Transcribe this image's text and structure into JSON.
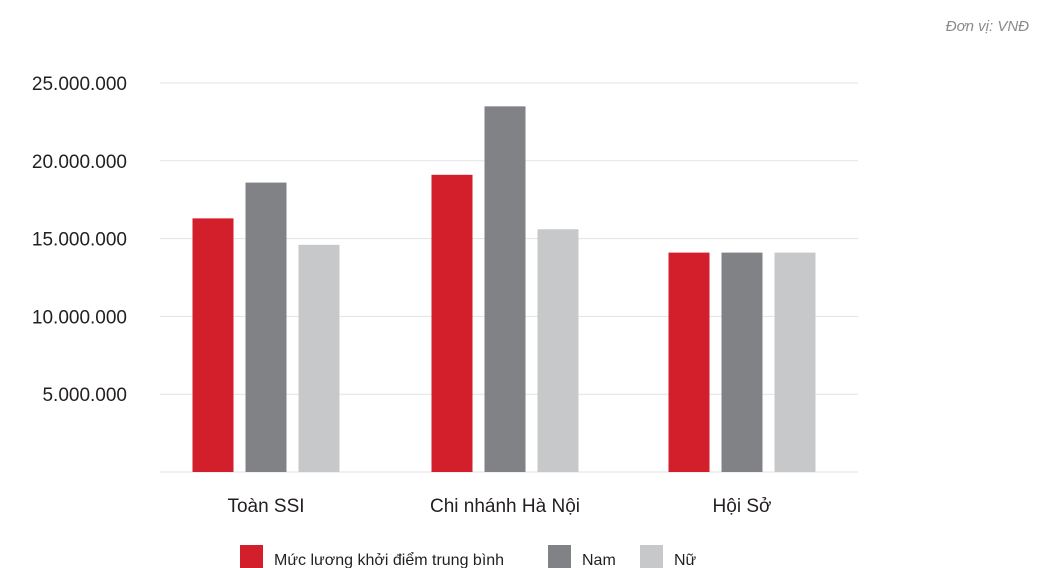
{
  "unit_label": "Đơn vị: VNĐ",
  "chart_data": {
    "type": "bar",
    "categories": [
      "Toàn SSI",
      "Chi nhánh Hà Nội",
      "Hội Sở"
    ],
    "series": [
      {
        "name": "Mức lương khởi điểm trung bình",
        "color": "#d21f2b",
        "values": [
          16300000,
          19100000,
          14100000
        ]
      },
      {
        "name": "Nam",
        "color": "#808285",
        "values": [
          18600000,
          23500000,
          14100000
        ]
      },
      {
        "name": "Nữ",
        "color": "#c7c8ca",
        "values": [
          14600000,
          15600000,
          14100000
        ]
      }
    ],
    "y_ticks": [
      {
        "value": 5000000,
        "label": "5.000.000"
      },
      {
        "value": 10000000,
        "label": "10.000.000"
      },
      {
        "value": 15000000,
        "label": "15.000.000"
      },
      {
        "value": 20000000,
        "label": "20.000.000"
      },
      {
        "value": 25000000,
        "label": "25.000.000"
      }
    ],
    "ylim": [
      0,
      25000000
    ],
    "grid": true,
    "legend_position": "bottom"
  }
}
